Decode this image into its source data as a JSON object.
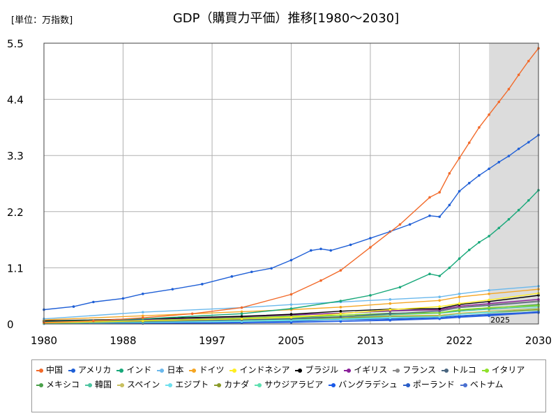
{
  "unit_label": "[単位：万指数]",
  "chart_data": {
    "type": "line",
    "title": "GDP（購買力平価）推移[1980～2030]",
    "xlabel": "",
    "ylabel": "",
    "xlim": [
      1980,
      2030
    ],
    "ylim": [
      0,
      5.5
    ],
    "x_ticks": [
      "1980",
      "1988",
      "1997",
      "2005",
      "2013",
      "2022",
      "2030"
    ],
    "y_ticks": [
      "0",
      "1.1",
      "2.2",
      "3.3",
      "4.4",
      "5.5"
    ],
    "shade_label": "2025",
    "series": [
      {
        "name": "中国",
        "color": "#f26a2a",
        "points": [
          [
            1980,
            0.03
          ],
          [
            1985,
            0.06
          ],
          [
            1990,
            0.12
          ],
          [
            1995,
            0.2
          ],
          [
            2000,
            0.32
          ],
          [
            2005,
            0.58
          ],
          [
            2008,
            0.85
          ],
          [
            2010,
            1.05
          ],
          [
            2013,
            1.5
          ],
          [
            2016,
            1.95
          ],
          [
            2019,
            2.48
          ],
          [
            2020,
            2.58
          ],
          [
            2021,
            2.95
          ],
          [
            2022,
            3.25
          ],
          [
            2023,
            3.55
          ],
          [
            2024,
            3.85
          ],
          [
            2025,
            4.1
          ],
          [
            2026,
            4.35
          ],
          [
            2027,
            4.6
          ],
          [
            2028,
            4.88
          ],
          [
            2029,
            5.15
          ],
          [
            2030,
            5.4
          ]
        ]
      },
      {
        "name": "アメリカ",
        "color": "#1f5fd6",
        "points": [
          [
            1980,
            0.28
          ],
          [
            1983,
            0.34
          ],
          [
            1985,
            0.43
          ],
          [
            1988,
            0.5
          ],
          [
            1990,
            0.59
          ],
          [
            1993,
            0.68
          ],
          [
            1996,
            0.78
          ],
          [
            1999,
            0.93
          ],
          [
            2001,
            1.02
          ],
          [
            2003,
            1.09
          ],
          [
            2005,
            1.25
          ],
          [
            2007,
            1.44
          ],
          [
            2008,
            1.47
          ],
          [
            2009,
            1.44
          ],
          [
            2011,
            1.55
          ],
          [
            2013,
            1.68
          ],
          [
            2015,
            1.81
          ],
          [
            2017,
            1.95
          ],
          [
            2019,
            2.12
          ],
          [
            2020,
            2.1
          ],
          [
            2021,
            2.33
          ],
          [
            2022,
            2.6
          ],
          [
            2023,
            2.76
          ],
          [
            2024,
            2.91
          ],
          [
            2025,
            3.04
          ],
          [
            2026,
            3.17
          ],
          [
            2027,
            3.29
          ],
          [
            2028,
            3.43
          ],
          [
            2029,
            3.56
          ],
          [
            2030,
            3.7
          ]
        ]
      },
      {
        "name": "インド",
        "color": "#18a87a",
        "points": [
          [
            1980,
            0.04
          ],
          [
            1990,
            0.1
          ],
          [
            2000,
            0.2
          ],
          [
            2005,
            0.3
          ],
          [
            2010,
            0.45
          ],
          [
            2013,
            0.56
          ],
          [
            2016,
            0.72
          ],
          [
            2019,
            0.98
          ],
          [
            2020,
            0.94
          ],
          [
            2021,
            1.1
          ],
          [
            2022,
            1.28
          ],
          [
            2023,
            1.45
          ],
          [
            2024,
            1.6
          ],
          [
            2025,
            1.72
          ],
          [
            2026,
            1.88
          ],
          [
            2027,
            2.05
          ],
          [
            2028,
            2.23
          ],
          [
            2029,
            2.42
          ],
          [
            2030,
            2.62
          ]
        ]
      },
      {
        "name": "日本",
        "color": "#6ab8ec",
        "points": [
          [
            1980,
            0.1
          ],
          [
            1990,
            0.23
          ],
          [
            2000,
            0.32
          ],
          [
            2005,
            0.38
          ],
          [
            2010,
            0.43
          ],
          [
            2015,
            0.48
          ],
          [
            2020,
            0.53
          ],
          [
            2022,
            0.59
          ],
          [
            2025,
            0.66
          ],
          [
            2030,
            0.74
          ]
        ]
      },
      {
        "name": "ドイツ",
        "color": "#f5a623",
        "points": [
          [
            1980,
            0.08
          ],
          [
            1990,
            0.16
          ],
          [
            2000,
            0.24
          ],
          [
            2005,
            0.28
          ],
          [
            2010,
            0.33
          ],
          [
            2015,
            0.4
          ],
          [
            2020,
            0.46
          ],
          [
            2022,
            0.53
          ],
          [
            2025,
            0.59
          ],
          [
            2030,
            0.68
          ]
        ]
      },
      {
        "name": "インドネシア",
        "color": "#ffee22",
        "points": [
          [
            1980,
            0.02
          ],
          [
            1990,
            0.06
          ],
          [
            2000,
            0.1
          ],
          [
            2005,
            0.13
          ],
          [
            2010,
            0.2
          ],
          [
            2015,
            0.28
          ],
          [
            2020,
            0.34
          ],
          [
            2022,
            0.4
          ],
          [
            2025,
            0.47
          ],
          [
            2030,
            0.6
          ]
        ]
      },
      {
        "name": "ブラジル",
        "color": "#000000",
        "points": [
          [
            1980,
            0.06
          ],
          [
            1990,
            0.1
          ],
          [
            2000,
            0.15
          ],
          [
            2005,
            0.19
          ],
          [
            2010,
            0.25
          ],
          [
            2015,
            0.29
          ],
          [
            2020,
            0.3
          ],
          [
            2022,
            0.38
          ],
          [
            2025,
            0.44
          ],
          [
            2030,
            0.56
          ]
        ]
      },
      {
        "name": "イギリス",
        "color": "#8a1f9a",
        "points": [
          [
            1980,
            0.05
          ],
          [
            1990,
            0.09
          ],
          [
            2000,
            0.14
          ],
          [
            2005,
            0.18
          ],
          [
            2010,
            0.21
          ],
          [
            2015,
            0.26
          ],
          [
            2020,
            0.28
          ],
          [
            2022,
            0.35
          ],
          [
            2025,
            0.4
          ],
          [
            2030,
            0.48
          ]
        ]
      },
      {
        "name": "フランス",
        "color": "#8a8a8a",
        "points": [
          [
            1980,
            0.05
          ],
          [
            1990,
            0.09
          ],
          [
            2000,
            0.14
          ],
          [
            2005,
            0.17
          ],
          [
            2010,
            0.21
          ],
          [
            2015,
            0.25
          ],
          [
            2020,
            0.27
          ],
          [
            2022,
            0.33
          ],
          [
            2025,
            0.38
          ],
          [
            2030,
            0.45
          ]
        ]
      },
      {
        "name": "トルコ",
        "color": "#4a6680",
        "points": [
          [
            1980,
            0.02
          ],
          [
            1990,
            0.05
          ],
          [
            2000,
            0.08
          ],
          [
            2005,
            0.1
          ],
          [
            2010,
            0.14
          ],
          [
            2015,
            0.2
          ],
          [
            2020,
            0.25
          ],
          [
            2022,
            0.32
          ],
          [
            2025,
            0.36
          ],
          [
            2030,
            0.44
          ]
        ]
      },
      {
        "name": "イタリア",
        "color": "#8ee02a",
        "points": [
          [
            1980,
            0.05
          ],
          [
            1990,
            0.09
          ],
          [
            2000,
            0.13
          ],
          [
            2005,
            0.15
          ],
          [
            2010,
            0.17
          ],
          [
            2015,
            0.2
          ],
          [
            2020,
            0.22
          ],
          [
            2022,
            0.28
          ],
          [
            2025,
            0.32
          ],
          [
            2030,
            0.36
          ]
        ]
      },
      {
        "name": "メキシコ",
        "color": "#4aa04a",
        "points": [
          [
            1980,
            0.04
          ],
          [
            1990,
            0.07
          ],
          [
            2000,
            0.11
          ],
          [
            2005,
            0.13
          ],
          [
            2010,
            0.17
          ],
          [
            2015,
            0.21
          ],
          [
            2020,
            0.22
          ],
          [
            2022,
            0.27
          ],
          [
            2025,
            0.31
          ],
          [
            2030,
            0.38
          ]
        ]
      },
      {
        "name": "韓国",
        "color": "#4cc4a0",
        "points": [
          [
            1980,
            0.01
          ],
          [
            1990,
            0.04
          ],
          [
            2000,
            0.08
          ],
          [
            2005,
            0.11
          ],
          [
            2010,
            0.14
          ],
          [
            2015,
            0.18
          ],
          [
            2020,
            0.21
          ],
          [
            2022,
            0.25
          ],
          [
            2025,
            0.29
          ],
          [
            2030,
            0.35
          ]
        ]
      },
      {
        "name": "スペイン",
        "color": "#c8c060",
        "points": [
          [
            1980,
            0.03
          ],
          [
            1990,
            0.06
          ],
          [
            2000,
            0.09
          ],
          [
            2005,
            0.12
          ],
          [
            2010,
            0.14
          ],
          [
            2015,
            0.16
          ],
          [
            2020,
            0.17
          ],
          [
            2022,
            0.21
          ],
          [
            2025,
            0.25
          ],
          [
            2030,
            0.3
          ]
        ]
      },
      {
        "name": "エジプト",
        "color": "#6ee0ee",
        "points": [
          [
            1980,
            0.01
          ],
          [
            1990,
            0.03
          ],
          [
            2000,
            0.05
          ],
          [
            2005,
            0.07
          ],
          [
            2010,
            0.09
          ],
          [
            2015,
            0.12
          ],
          [
            2020,
            0.14
          ],
          [
            2022,
            0.19
          ],
          [
            2025,
            0.23
          ],
          [
            2030,
            0.32
          ]
        ]
      },
      {
        "name": "カナダ",
        "color": "#8a9a2a",
        "points": [
          [
            1980,
            0.03
          ],
          [
            1990,
            0.06
          ],
          [
            2000,
            0.08
          ],
          [
            2005,
            0.1
          ],
          [
            2010,
            0.12
          ],
          [
            2015,
            0.15
          ],
          [
            2020,
            0.16
          ],
          [
            2022,
            0.2
          ],
          [
            2025,
            0.23
          ],
          [
            2030,
            0.28
          ]
        ]
      },
      {
        "name": "サウジアラビア",
        "color": "#5ee0b0",
        "points": [
          [
            1980,
            0.03
          ],
          [
            1990,
            0.04
          ],
          [
            2000,
            0.06
          ],
          [
            2005,
            0.08
          ],
          [
            2010,
            0.1
          ],
          [
            2015,
            0.14
          ],
          [
            2020,
            0.15
          ],
          [
            2022,
            0.19
          ],
          [
            2025,
            0.22
          ],
          [
            2030,
            0.27
          ]
        ]
      },
      {
        "name": "バングラデシュ",
        "color": "#1a5ae8",
        "points": [
          [
            1980,
            0.01
          ],
          [
            1990,
            0.015
          ],
          [
            2000,
            0.025
          ],
          [
            2005,
            0.035
          ],
          [
            2010,
            0.05
          ],
          [
            2015,
            0.08
          ],
          [
            2020,
            0.11
          ],
          [
            2022,
            0.14
          ],
          [
            2025,
            0.17
          ],
          [
            2030,
            0.24
          ]
        ]
      },
      {
        "name": "ポーランド",
        "color": "#2a5ec8",
        "points": [
          [
            1980,
            0.02
          ],
          [
            1990,
            0.03
          ],
          [
            2000,
            0.045
          ],
          [
            2005,
            0.055
          ],
          [
            2010,
            0.08
          ],
          [
            2015,
            0.1
          ],
          [
            2020,
            0.13
          ],
          [
            2022,
            0.16
          ],
          [
            2025,
            0.19
          ],
          [
            2030,
            0.23
          ]
        ]
      },
      {
        "name": "ベトナム",
        "color": "#4a70d0",
        "points": [
          [
            1980,
            0.005
          ],
          [
            1990,
            0.01
          ],
          [
            2000,
            0.02
          ],
          [
            2005,
            0.03
          ],
          [
            2010,
            0.05
          ],
          [
            2015,
            0.07
          ],
          [
            2020,
            0.1
          ],
          [
            2022,
            0.13
          ],
          [
            2025,
            0.16
          ],
          [
            2030,
            0.22
          ]
        ]
      }
    ]
  }
}
